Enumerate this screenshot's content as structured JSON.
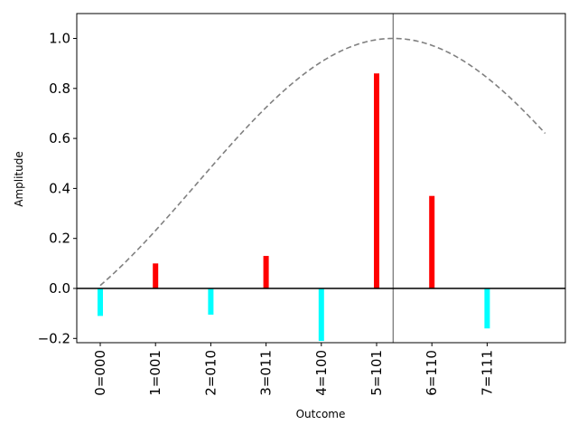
{
  "chart_data": {
    "type": "bar",
    "xlabel": "Outcome",
    "ylabel": "Amplitude",
    "ylim": [
      -0.22,
      1.1
    ],
    "yticks": [
      "−0.2",
      "0.0",
      "0.2",
      "0.4",
      "0.6",
      "0.8",
      "1.0"
    ],
    "categories": [
      "0=000",
      "1=001",
      "2=010",
      "3=011",
      "4=100",
      "5=101",
      "6=110",
      "7=111"
    ],
    "values": [
      -0.11,
      0.1,
      -0.105,
      0.13,
      -0.21,
      0.86,
      0.37,
      -0.16
    ],
    "positive_color": "#ff0000",
    "negative_color": "#00ffff",
    "vertical_marker_x": 5.3,
    "envelope": {
      "style": "dashed",
      "color": "#808080",
      "peak_x": 5.3,
      "peak_y": 1.0,
      "x_range": [
        0,
        8.05
      ]
    },
    "grid": false
  }
}
